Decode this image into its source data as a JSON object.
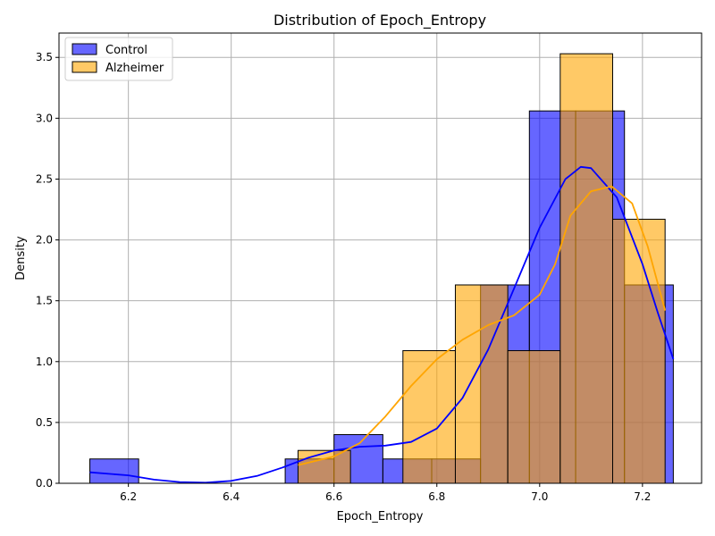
{
  "chart_data": {
    "type": "histogram",
    "title": "Distribution of Epoch_Entropy",
    "xlabel": "Epoch_Entropy",
    "ylabel": "Density",
    "xlim": [
      6.065,
      7.315
    ],
    "ylim": [
      0,
      3.7
    ],
    "xticks": [
      6.2,
      6.4,
      6.6,
      6.8,
      7.0,
      7.2
    ],
    "yticks": [
      0.0,
      0.5,
      1.0,
      1.5,
      2.0,
      2.5,
      3.0,
      3.5
    ],
    "xtick_labels": [
      "6.2",
      "6.4",
      "6.6",
      "6.8",
      "7.0",
      "7.2"
    ],
    "ytick_labels": [
      "0.0",
      "0.5",
      "1.0",
      "1.5",
      "2.0",
      "2.5",
      "3.0",
      "3.5"
    ],
    "grid": true,
    "legend_position": "top-left",
    "series": [
      {
        "name": "Control",
        "color": "#0000ff",
        "bars": [
          {
            "x0": 6.125,
            "x1": 6.22,
            "density": 0.2
          },
          {
            "x0": 6.22,
            "x1": 6.315,
            "density": 0.0
          },
          {
            "x0": 6.315,
            "x1": 6.41,
            "density": 0.0
          },
          {
            "x0": 6.41,
            "x1": 6.505,
            "density": 0.0
          },
          {
            "x0": 6.505,
            "x1": 6.6,
            "density": 0.2
          },
          {
            "x0": 6.6,
            "x1": 6.695,
            "density": 0.4
          },
          {
            "x0": 6.695,
            "x1": 6.79,
            "density": 0.2
          },
          {
            "x0": 6.79,
            "x1": 6.885,
            "density": 0.2
          },
          {
            "x0": 6.885,
            "x1": 6.98,
            "density": 1.63
          },
          {
            "x0": 6.98,
            "x1": 7.07,
            "density": 3.06
          },
          {
            "x0": 7.07,
            "x1": 7.165,
            "density": 3.06
          },
          {
            "x0": 7.165,
            "x1": 7.26,
            "density": 1.63
          }
        ],
        "kde": [
          [
            6.125,
            0.09
          ],
          [
            6.2,
            0.065
          ],
          [
            6.25,
            0.03
          ],
          [
            6.3,
            0.01
          ],
          [
            6.35,
            0.005
          ],
          [
            6.4,
            0.02
          ],
          [
            6.45,
            0.06
          ],
          [
            6.5,
            0.13
          ],
          [
            6.55,
            0.21
          ],
          [
            6.6,
            0.27
          ],
          [
            6.65,
            0.3
          ],
          [
            6.7,
            0.31
          ],
          [
            6.75,
            0.34
          ],
          [
            6.8,
            0.45
          ],
          [
            6.85,
            0.7
          ],
          [
            6.9,
            1.1
          ],
          [
            6.95,
            1.6
          ],
          [
            7.0,
            2.1
          ],
          [
            7.05,
            2.5
          ],
          [
            7.08,
            2.6
          ],
          [
            7.1,
            2.59
          ],
          [
            7.15,
            2.35
          ],
          [
            7.2,
            1.8
          ],
          [
            7.23,
            1.4
          ],
          [
            7.26,
            1.02
          ]
        ]
      },
      {
        "name": "Alzheimer",
        "color": "#ffa500",
        "bars": [
          {
            "x0": 6.53,
            "x1": 6.632,
            "density": 0.27
          },
          {
            "x0": 6.632,
            "x1": 6.734,
            "density": 0.0
          },
          {
            "x0": 6.734,
            "x1": 6.836,
            "density": 1.09
          },
          {
            "x0": 6.836,
            "x1": 6.938,
            "density": 1.63
          },
          {
            "x0": 6.938,
            "x1": 7.04,
            "density": 1.09
          },
          {
            "x0": 7.04,
            "x1": 7.142,
            "density": 3.53
          },
          {
            "x0": 7.142,
            "x1": 7.244,
            "density": 2.17
          }
        ],
        "kde": [
          [
            6.53,
            0.15
          ],
          [
            6.6,
            0.22
          ],
          [
            6.65,
            0.33
          ],
          [
            6.7,
            0.55
          ],
          [
            6.75,
            0.8
          ],
          [
            6.8,
            1.02
          ],
          [
            6.85,
            1.18
          ],
          [
            6.9,
            1.3
          ],
          [
            6.95,
            1.38
          ],
          [
            7.0,
            1.55
          ],
          [
            7.03,
            1.8
          ],
          [
            7.06,
            2.2
          ],
          [
            7.1,
            2.4
          ],
          [
            7.14,
            2.44
          ],
          [
            7.18,
            2.3
          ],
          [
            7.21,
            1.95
          ],
          [
            7.244,
            1.42
          ]
        ]
      }
    ]
  }
}
